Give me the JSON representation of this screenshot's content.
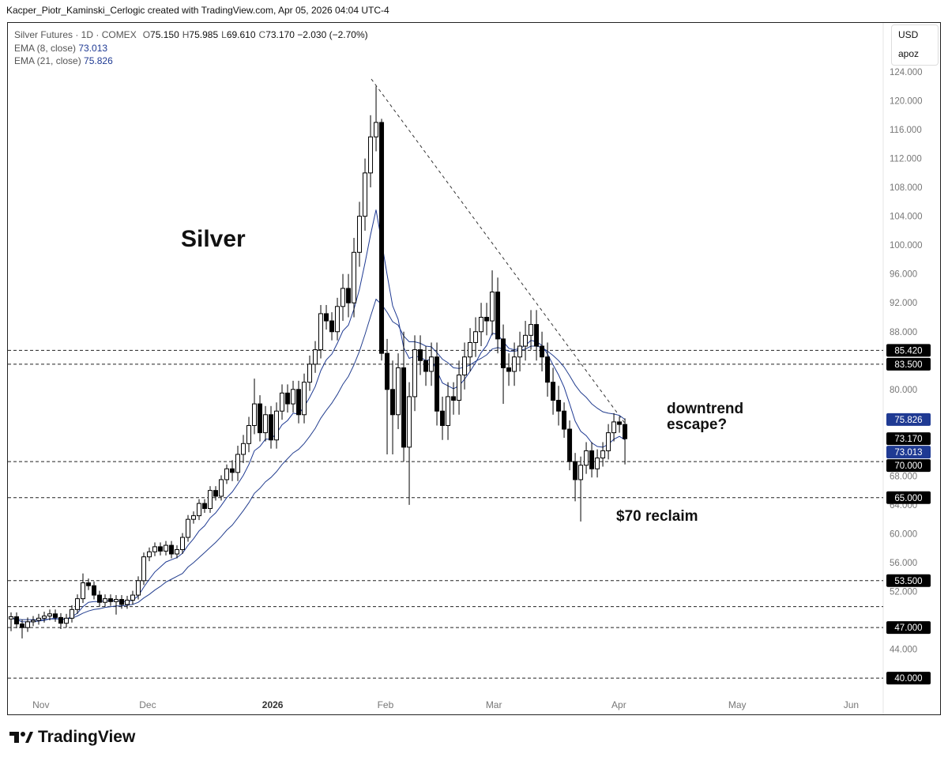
{
  "credit": "Kacper_Piotr_Kaminski_Cerlogic created with TradingView.com, Apr 05, 2026 04:04 UTC-4",
  "brand": "TradingView",
  "toolbar": {
    "currency": "USD",
    "scale": "apoz"
  },
  "chart_data": {
    "type": "candlestick",
    "title": "Silver Futures · 1D · COMEX",
    "ohlc_legend": [
      {
        "key": "O",
        "value": "75.150"
      },
      {
        "key": "H",
        "value": "75.985"
      },
      {
        "key": "L",
        "value": "69.610"
      },
      {
        "key": "C",
        "value": "73.170"
      }
    ],
    "change": "−2.030 (−2.70%)",
    "open": [
      48.2,
      48.5,
      47.5,
      47,
      47.8,
      48,
      48.3,
      48.6,
      48.9,
      48.4,
      47.6,
      48.3,
      49.5,
      51,
      53.2,
      52.8,
      51.5,
      50.5,
      51,
      50.6,
      50.9,
      50.2,
      50.8,
      51.5,
      53.5,
      56.8,
      57.5,
      58.2,
      57.6,
      58.4,
      57.2,
      57.8,
      59.5,
      62,
      62.5,
      64.2,
      63.5,
      66,
      65.2,
      67.5,
      69,
      68.5,
      71,
      72.5,
      75,
      78,
      74,
      76.5,
      73,
      77,
      79.5,
      78,
      80,
      76.5,
      81,
      83.5,
      85.5,
      90.5,
      89.5,
      88,
      91.5,
      94,
      92,
      99,
      104,
      110,
      115,
      117,
      85,
      80,
      76.5,
      83,
      72,
      79,
      85.5,
      84,
      82.5,
      84.5,
      77,
      75,
      79,
      78.5,
      82,
      84.5,
      86.5,
      88,
      90,
      89.5,
      93.5,
      87,
      83,
      82.5,
      84.5,
      86,
      87.5,
      89,
      86,
      84.5,
      81,
      78.5,
      77,
      74.5,
      70,
      67.5,
      69.5,
      71.5,
      69,
      70.5,
      71.5,
      74,
      75.5,
      75.15
    ],
    "high": [
      49.1,
      49.1,
      48.1,
      48.4,
      48.6,
      48.9,
      49.2,
      49.5,
      49.5,
      49.0,
      48.9,
      50.1,
      51.6,
      54.5,
      53.8,
      53.4,
      52.1,
      51.6,
      51.6,
      51.5,
      51.5,
      51.4,
      52.1,
      54.1,
      57.4,
      58.1,
      58.8,
      58.8,
      59.0,
      59.0,
      58.4,
      60.1,
      62.6,
      63.1,
      64.8,
      64.8,
      66.6,
      66.6,
      68.1,
      69.6,
      70.2,
      72.2,
      73.7,
      76.2,
      81.5,
      79.2,
      77.7,
      77.7,
      78.2,
      80.7,
      80.7,
      81.2,
      81.2,
      82.2,
      84.7,
      86.7,
      91.7,
      91.7,
      90.7,
      92.7,
      96,
      96,
      101,
      106,
      112,
      118,
      122,
      117.5,
      87,
      84,
      85,
      88,
      81,
      87.5,
      87.5,
      86,
      86.5,
      86.5,
      79,
      81,
      81,
      84,
      86.5,
      88.5,
      90,
      92,
      92,
      96.5,
      95.5,
      89,
      85,
      86.5,
      88,
      89.5,
      91,
      91,
      88,
      86.5,
      83,
      80.5,
      78.2,
      75.7,
      71.2,
      70.7,
      72.7,
      72.7,
      71.7,
      72.7,
      75.2,
      76.7,
      76.2,
      75.985
    ],
    "low": [
      46.5,
      46.9,
      45.5,
      46.4,
      47.2,
      47.4,
      47.7,
      48.0,
      47.8,
      46.8,
      47.0,
      47.7,
      48.9,
      50.4,
      52.2,
      50.9,
      49.9,
      49.9,
      50.0,
      48.8,
      49.6,
      49.6,
      50.2,
      50.9,
      52.9,
      56.2,
      56.9,
      57.0,
      57.0,
      56.6,
      56.6,
      57.2,
      58.9,
      61.4,
      61.9,
      62.9,
      62.9,
      64.6,
      64.6,
      66.9,
      67.3,
      67.3,
      69.8,
      71.3,
      73.8,
      72.8,
      72.8,
      71.8,
      71.8,
      75.8,
      76.8,
      76.8,
      75.3,
      75.3,
      79.8,
      82.3,
      84.3,
      88.3,
      86.8,
      86.8,
      89.5,
      90,
      90,
      97,
      102,
      108,
      113,
      84,
      71,
      71,
      74.5,
      70,
      64,
      77,
      82,
      80.5,
      80.5,
      75,
      73,
      73,
      76.5,
      76.5,
      80,
      82.5,
      84.5,
      86,
      87.5,
      87.5,
      85,
      78,
      80.5,
      80.5,
      82.5,
      84,
      85.5,
      84,
      82.5,
      79,
      76.5,
      75,
      73.3,
      68.8,
      64.5,
      61.7,
      68.3,
      67.8,
      67.8,
      69.3,
      70.3,
      72.8,
      74,
      69.61
    ],
    "close": [
      48.5,
      47.5,
      47,
      47.8,
      48,
      48.3,
      48.6,
      48.9,
      48.4,
      47.6,
      48.3,
      49.5,
      51,
      53.2,
      52.8,
      51.5,
      50.5,
      51,
      50.6,
      50.9,
      50.2,
      50.8,
      51.5,
      53.5,
      56.8,
      57.5,
      58.2,
      57.6,
      58.4,
      57.2,
      57.8,
      59.5,
      62,
      62.5,
      64.2,
      63.5,
      66,
      65.2,
      67.5,
      69,
      68.5,
      71,
      72.5,
      75,
      78,
      74,
      76.5,
      73,
      77,
      79.5,
      78,
      80,
      76.5,
      81,
      83.5,
      85.5,
      90.5,
      89.5,
      88,
      91.5,
      94,
      92,
      99,
      104,
      110,
      115,
      117,
      85,
      80,
      76.5,
      83,
      72,
      79,
      85.5,
      84,
      82.5,
      84.5,
      77,
      75,
      79,
      78.5,
      82,
      84.5,
      86.5,
      88,
      90,
      89.5,
      93.5,
      87,
      83,
      82.5,
      84.5,
      86,
      87.5,
      89,
      86,
      84.5,
      81,
      78.5,
      77,
      74.5,
      70,
      67.5,
      69.5,
      71.5,
      69,
      70.5,
      71.5,
      74,
      75.5,
      75.15,
      73.17
    ],
    "up_color": "#ffffff",
    "down_color": "#000000",
    "series": [
      {
        "name": "EMA (8, close)",
        "value_label": "73.013",
        "color": "#1f3a93",
        "values": [
          48.3,
          48.1,
          47.8,
          47.8,
          47.8,
          47.9,
          48.0,
          48.2,
          48.3,
          48.1,
          48.2,
          48.5,
          49.0,
          49.9,
          50.5,
          50.6,
          50.6,
          50.7,
          50.7,
          50.7,
          50.6,
          50.6,
          50.8,
          51.4,
          52.6,
          53.7,
          54.7,
          55.4,
          56.1,
          56.4,
          56.7,
          57.3,
          58.4,
          59.3,
          60.4,
          61.1,
          62.2,
          62.9,
          63.9,
          65.0,
          65.8,
          66.9,
          68.1,
          69.6,
          71.5,
          72.1,
          73.1,
          73.1,
          73.9,
          75.1,
          75.7,
          76.7,
          76.6,
          77.6,
          78.9,
          80.4,
          82.6,
          84.1,
          84.9,
          86.4,
          88.1,
          88.9,
          91.1,
          93.9,
          97.5,
          101.4,
          104.9,
          100.5,
          95.9,
          91.6,
          89.7,
          85.8,
          84.3,
          84.6,
          84.5,
          84.0,
          84.2,
          82.6,
          80.9,
          80.5,
          80.1,
          80.5,
          81.4,
          82.5,
          83.7,
          85.1,
          86.1,
          87.8,
          87.6,
          86.6,
          85.7,
          85.5,
          85.7,
          86.1,
          86.8,
          86.6,
          86.1,
          84.9,
          83.4,
          82.0,
          80.3,
          78.0,
          75.6,
          74.2,
          73.6,
          72.6,
          72.1,
          72.0,
          72.4,
          73.1,
          73.5,
          73.013
        ]
      },
      {
        "name": "EMA (21, close)",
        "value_label": "75.826",
        "color": "#243f8f",
        "values": [
          48.3,
          48.2,
          48.1,
          48.1,
          48.1,
          48.1,
          48.1,
          48.2,
          48.2,
          48.2,
          48.2,
          48.3,
          48.6,
          49.0,
          49.3,
          49.5,
          49.6,
          49.8,
          49.9,
          50.0,
          50.0,
          50.1,
          50.2,
          50.5,
          51.1,
          51.6,
          52.2,
          52.7,
          53.3,
          53.7,
          54.1,
          54.5,
          55.4,
          56.0,
          56.7,
          57.4,
          58.1,
          58.8,
          59.6,
          60.5,
          61.2,
          62.2,
          63.2,
          64.3,
          65.6,
          66.3,
          67.2,
          67.8,
          68.6,
          69.6,
          70.4,
          71.2,
          71.7,
          72.5,
          73.5,
          74.6,
          76.0,
          77.1,
          78.1,
          79.3,
          80.7,
          81.8,
          83.4,
          85.3,
          87.6,
          90.1,
          92.5,
          91.8,
          90.7,
          89.4,
          88.9,
          87.4,
          86.6,
          86.6,
          86.4,
          86.0,
          85.9,
          85.1,
          84.2,
          83.7,
          83.0,
          82.9,
          83.1,
          83.4,
          83.9,
          84.3,
          84.8,
          85.6,
          85.8,
          85.6,
          85.3,
          85.3,
          85.4,
          85.6,
          86.0,
          86.0,
          85.8,
          85.3,
          84.7,
          84.0,
          83.1,
          81.9,
          80.6,
          79.6,
          78.9,
          78.0,
          77.4,
          76.9,
          76.7,
          76.6,
          76.4,
          75.826
        ]
      }
    ],
    "ylim": [
      37.6,
      130.9
    ],
    "yticks": [
      {
        "value": 44,
        "label": "44.000"
      },
      {
        "value": 52,
        "label": "52.000"
      },
      {
        "value": 56,
        "label": "56.000"
      },
      {
        "value": 60,
        "label": "60.000"
      },
      {
        "value": 64,
        "label": "64.000"
      },
      {
        "value": 68,
        "label": "68.000"
      },
      {
        "value": 80,
        "label": "80.000"
      },
      {
        "value": 88,
        "label": "88.000"
      },
      {
        "value": 92,
        "label": "92.000"
      },
      {
        "value": 96,
        "label": "96.000"
      },
      {
        "value": 100,
        "label": "100.000"
      },
      {
        "value": 104,
        "label": "104.000"
      },
      {
        "value": 108,
        "label": "108.000"
      },
      {
        "value": 112,
        "label": "112.000"
      },
      {
        "value": 116,
        "label": "116.000"
      },
      {
        "value": 120,
        "label": "120.000"
      },
      {
        "value": 124,
        "label": "124.000"
      }
    ],
    "xlim": [
      -0.57,
      157.7
    ],
    "xticks": [
      {
        "value": 5.4,
        "label": "Nov"
      },
      {
        "value": 24.7,
        "label": "Dec"
      },
      {
        "value": 47.3,
        "label": "2026"
      },
      {
        "value": 67.7,
        "label": "Feb"
      },
      {
        "value": 87.3,
        "label": "Mar"
      },
      {
        "value": 109.9,
        "label": "Apr"
      },
      {
        "value": 131.3,
        "label": "May"
      },
      {
        "value": 151.9,
        "label": "Jun"
      }
    ],
    "levels": [
      {
        "value": 85.42,
        "label": "85.420"
      },
      {
        "value": 83.5,
        "label": "83.500"
      },
      {
        "value": 70,
        "label": "70.000"
      },
      {
        "value": 65,
        "label": "65.000"
      },
      {
        "value": 53.5,
        "label": "53.500"
      },
      {
        "value": 49.9
      },
      {
        "value": 47,
        "label": "47.000"
      },
      {
        "value": 40,
        "label": "40.000"
      }
    ],
    "price_labels": [
      {
        "value": 75.826,
        "label": "75.826",
        "color": "#1f3a93"
      },
      {
        "value": 73.17,
        "label": "73.170",
        "color": "#000000"
      },
      {
        "value": 73.013,
        "label": "73.013",
        "color": "#1f3a93"
      }
    ],
    "annotations": [
      "Silver",
      "downtrend escape?",
      "$70 reclaim"
    ]
  }
}
